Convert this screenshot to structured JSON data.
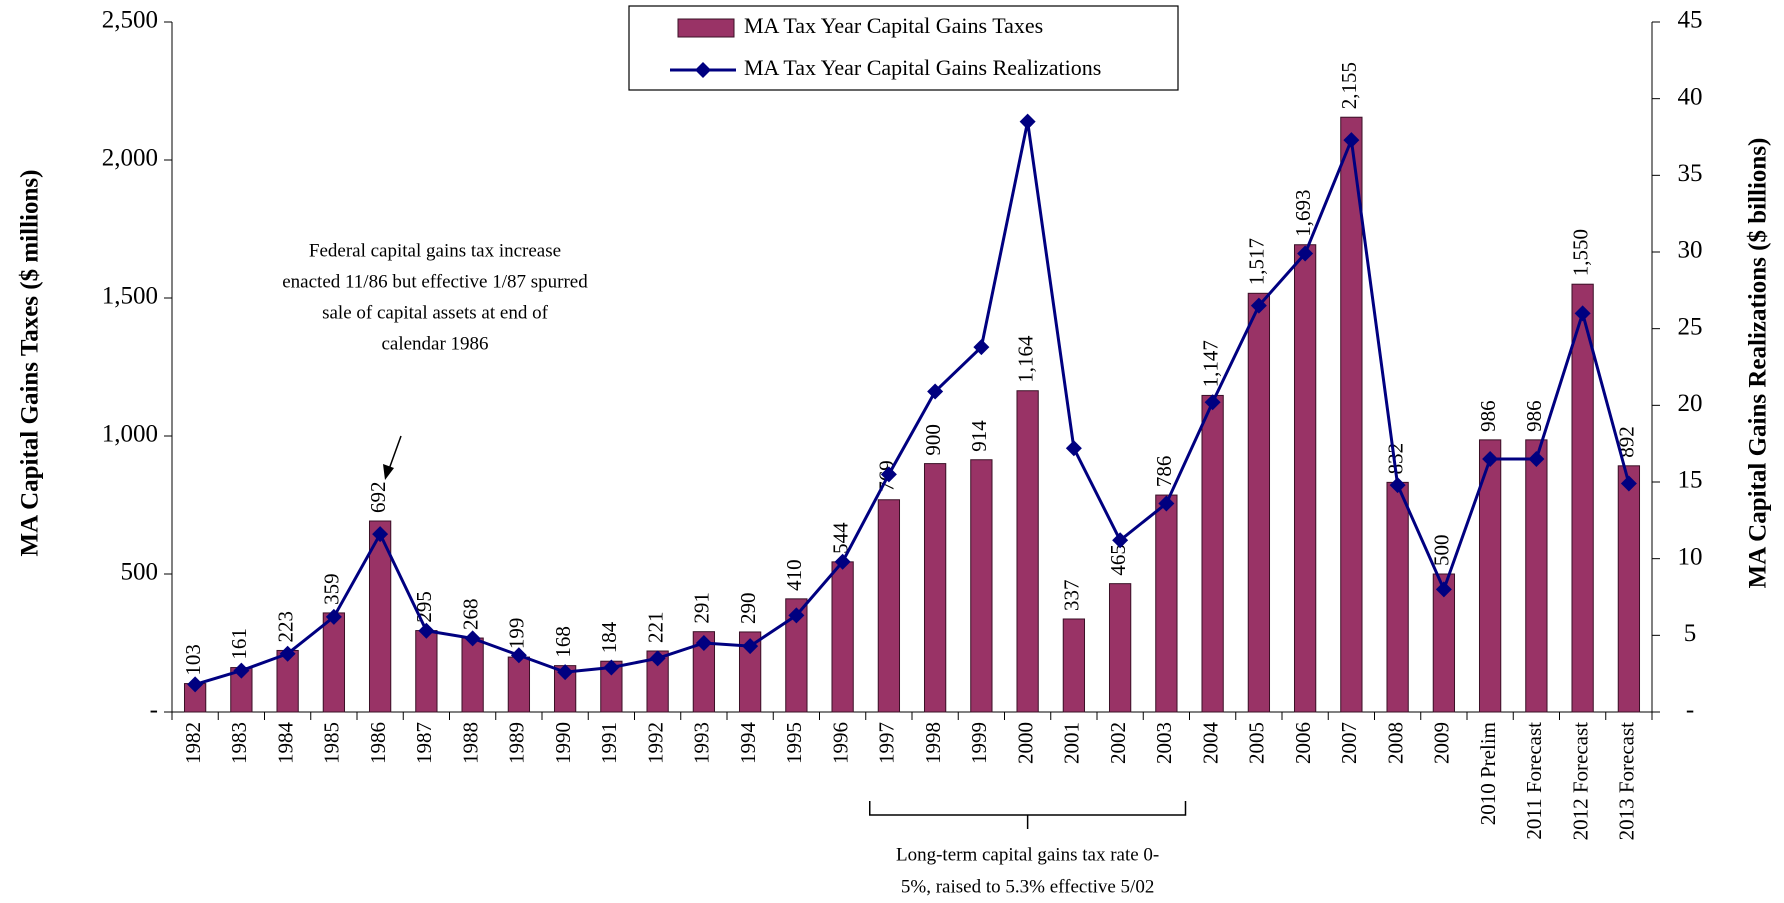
{
  "chart_data": {
    "type": "bar-line",
    "y_label": "MA Capital Gains Taxes ($ millions)",
    "y2_label": "MA Capital Gains Realizations ($ billions)",
    "categories": [
      "1982",
      "1983",
      "1984",
      "1985",
      "1986",
      "1987",
      "1988",
      "1989",
      "1990",
      "1991",
      "1992",
      "1993",
      "1994",
      "1995",
      "1996",
      "1997",
      "1998",
      "1999",
      "2000",
      "2001",
      "2002",
      "2003",
      "2004",
      "2005",
      "2006",
      "2007",
      "2008",
      "2009",
      "2010 Prelim",
      "2011 Forecast",
      "2012 Forecast",
      "2013 Forecast"
    ],
    "series": [
      {
        "name": "MA Tax Year Capital Gains Taxes",
        "type": "bar",
        "color": "#993366",
        "values": [
          103,
          161,
          223,
          359,
          692,
          295,
          268,
          199,
          168,
          184,
          221,
          291,
          290,
          410,
          544,
          769,
          900,
          914,
          1164,
          337,
          465,
          786,
          1147,
          1517,
          1693,
          2155,
          832,
          500,
          986,
          986,
          1550,
          892
        ],
        "value_labels": [
          "103",
          "161",
          "223",
          "359",
          "692",
          "295",
          "268",
          "199",
          "168",
          "184",
          "221",
          "291",
          "290",
          "410",
          "544",
          "769",
          "900",
          "914",
          "1,164",
          "337",
          "465",
          "786",
          "1,147",
          "1,517",
          "1,693",
          "2,155",
          "832",
          "500",
          "986",
          "986",
          "1,550",
          "892"
        ]
      },
      {
        "name": "MA Tax Year Capital Gains Realizations",
        "type": "line",
        "axis": "y2",
        "color": "#000080",
        "values": [
          1.8,
          2.7,
          3.8,
          6.2,
          11.6,
          5.3,
          4.8,
          3.7,
          2.6,
          2.9,
          3.5,
          4.5,
          4.3,
          6.3,
          9.8,
          15.5,
          20.9,
          23.8,
          38.5,
          17.2,
          11.2,
          13.6,
          20.2,
          26.5,
          29.9,
          37.3,
          14.8,
          8.0,
          16.5,
          16.5,
          26.0,
          14.9
        ]
      }
    ],
    "ylim": [
      0,
      2500
    ],
    "yticks": [
      {
        "value": 0,
        "label": "-"
      },
      500,
      {
        "value": 1000,
        "label": "1,000"
      },
      {
        "value": 1500,
        "label": "1,500"
      },
      {
        "value": 2000,
        "label": "2,000"
      },
      {
        "value": 2500,
        "label": "2,500"
      }
    ],
    "y2lim": [
      0,
      45
    ],
    "y2ticks": [
      {
        "value": 0,
        "label": "-"
      },
      5,
      10,
      15,
      20,
      25,
      30,
      35,
      40,
      45
    ],
    "annotations": [
      {
        "lines": [
          "Federal capital gains tax increase",
          "enacted 11/86 but effective 1/87 spurred",
          "sale of capital assets at end of",
          "calendar 1986"
        ]
      },
      {
        "lines": [
          "Long-term capital gains tax rate 0-",
          "5%, raised to 5.3% effective 5/02"
        ]
      }
    ]
  }
}
